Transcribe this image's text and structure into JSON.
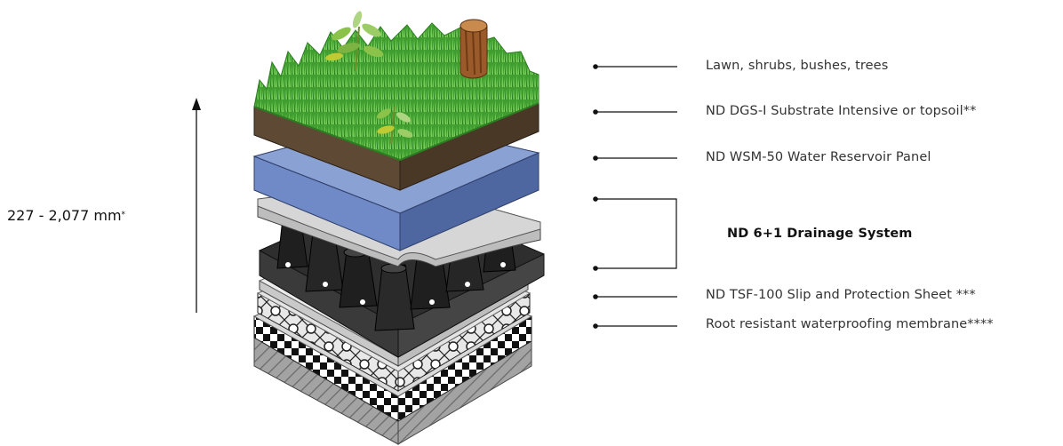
{
  "height_label": {
    "value": "227 - 2,077 mm",
    "footnote_mark": "*"
  },
  "layers": [
    {
      "label": "Lawn, shrubs, bushes, trees"
    },
    {
      "label": "ND DGS-I Substrate Intensive or topsoil**"
    },
    {
      "label": "ND WSM-50 Water Reservoir Panel"
    },
    {
      "label": "ND 6+1 Drainage System"
    },
    {
      "label": "ND TSF-100 Slip and Protection Sheet ***"
    },
    {
      "label": "Root resistant waterproofing membrane****"
    }
  ],
  "colors": {
    "grass": "#4caf3a",
    "soil": "#5a4632",
    "reservoir_panel": "#6b85c0",
    "drainage_cups": "#333333",
    "membrane": "#bfbfbf",
    "concrete": "#9a9a9a"
  }
}
